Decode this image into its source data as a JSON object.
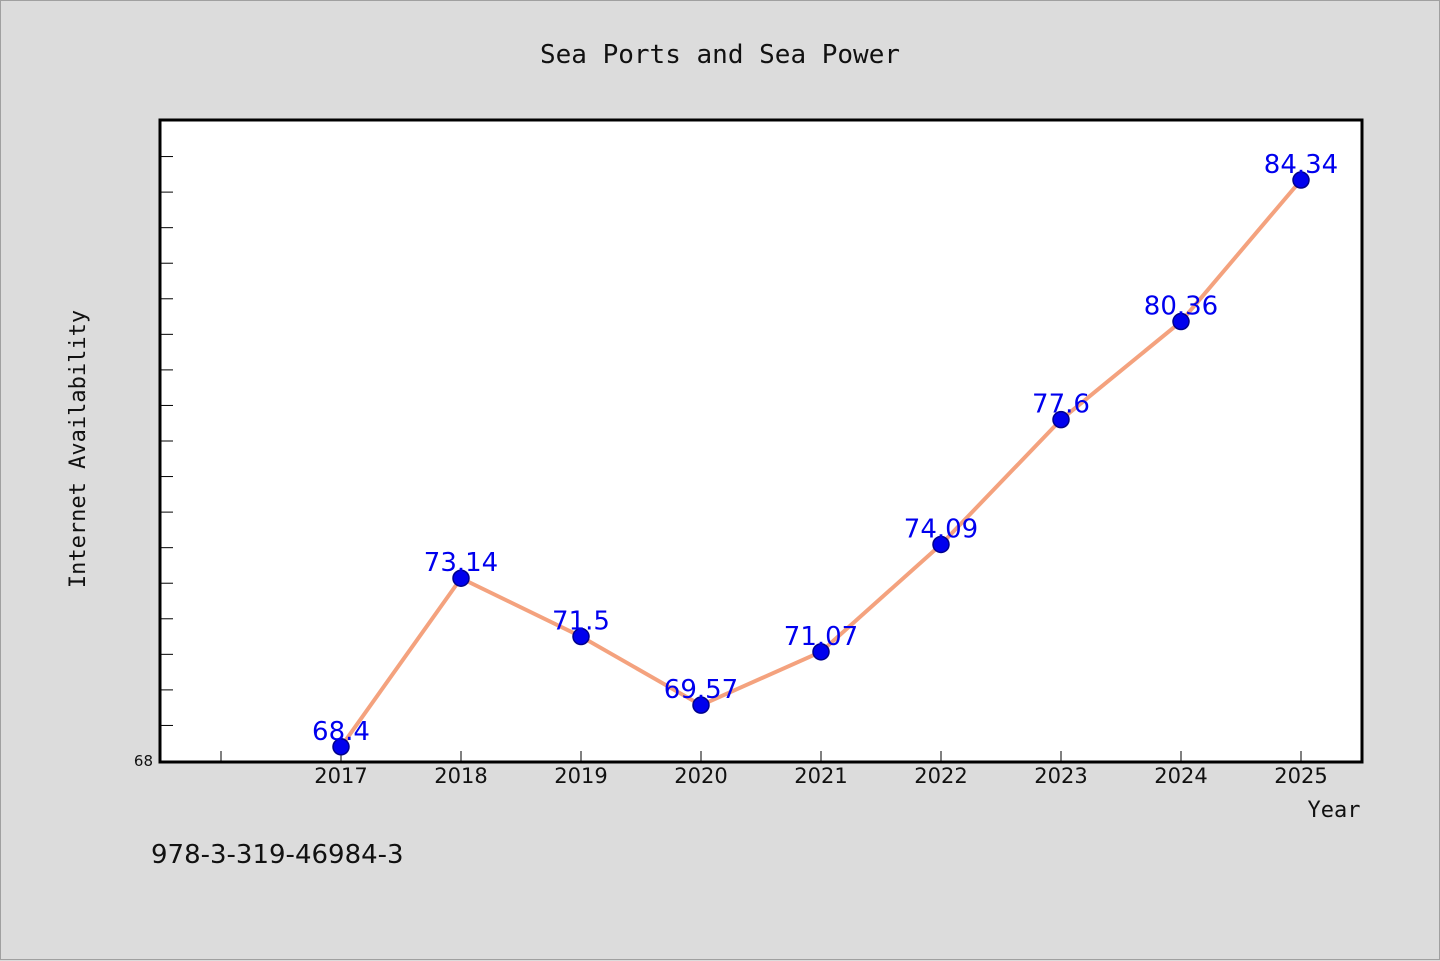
{
  "isbn": "978-3-319-46984-3",
  "colors": {
    "line": "#f4a27e",
    "marker": "#0000ee",
    "marker_stroke": "#00008b",
    "label": "#0000ee"
  },
  "chart_data": {
    "type": "line",
    "title": "Sea Ports and Sea Power",
    "xlabel": "Year",
    "ylabel": "Internet Availability",
    "categories": [
      "2017",
      "2018",
      "2019",
      "2020",
      "2021",
      "2022",
      "2023",
      "2024",
      "2025"
    ],
    "values": [
      68.4,
      73.14,
      71.5,
      69.57,
      71.07,
      74.09,
      77.6,
      80.36,
      84.34
    ],
    "data_labels": [
      "68.4",
      "73.14",
      "71.5",
      "69.57",
      "71.07",
      "74.09",
      "77.6",
      "80.36",
      "84.34"
    ],
    "ylim": [
      68,
      86
    ],
    "y_tick_labels": [
      "68"
    ],
    "y_minor_step": 1,
    "grid": false,
    "legend": "none"
  }
}
